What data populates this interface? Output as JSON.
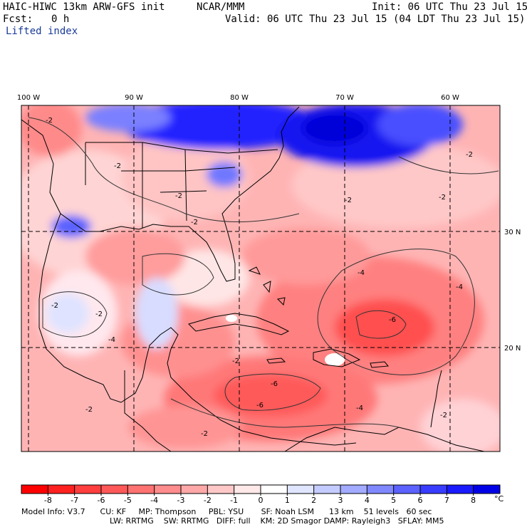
{
  "header": {
    "model": "HAIC-HIWC 13km ARW-GFS init",
    "org": "NCAR/MMM",
    "init": "Init: 06 UTC Thu 23 Jul 15",
    "fcst_label": "Fcst:",
    "fcst_value": "0 h",
    "valid": "Valid: 06 UTC Thu 23 Jul 15 (04 LDT Thu 23 Jul 15)",
    "field": "Lifted index"
  },
  "map": {
    "lon_labels": [
      "100 W",
      "90 W",
      "80 W",
      "70 W",
      "60 W"
    ],
    "lat_labels": [
      "30 N",
      "20 N"
    ],
    "contour_labels": [
      "-2",
      "-2",
      "-2",
      "-2",
      "-2",
      "-2",
      "-2",
      "-2",
      "-2",
      "-4",
      "-4",
      "-4",
      "-6",
      "-6",
      "-6",
      "-4",
      "-2",
      "-2",
      "-2",
      "-2"
    ]
  },
  "colorbar": {
    "ticks": [
      "-8",
      "-7",
      "-6",
      "-5",
      "-4",
      "-3",
      "-2",
      "-1",
      "0",
      "1",
      "2",
      "3",
      "4",
      "5",
      "6",
      "7",
      "8"
    ],
    "unit": "°C",
    "colors": [
      "#ff0000",
      "#ff2020",
      "#ff3e3e",
      "#ff5858",
      "#ff7272",
      "#ff8c8c",
      "#ffa8a8",
      "#ffc8c8",
      "#ffe8e8",
      "#ffffff",
      "#e0e6ff",
      "#c4ccff",
      "#a2abff",
      "#8088ff",
      "#5c62ff",
      "#383cff",
      "#1a1aff",
      "#0000e6"
    ]
  },
  "footer": {
    "line1": "Model Info: V3.7      CU: KF     MP: Thompson     PBL: YSU       SF: Noah LSM      13 km    51 levels   60 sec",
    "line2": "LW: RRTMG    SW: RRTMG   DIFF: full    KM: 2D Smagor DAMP: Rayleigh3   SFLAY: MM5"
  },
  "colors": {
    "deep_red": "#ff5050",
    "mid_red": "#ff8a8a",
    "light_red": "#ffbcbc",
    "pale": "#ffe4e4",
    "blue_deep": "#0a0ae0",
    "blue_light": "#a8b0ff"
  }
}
